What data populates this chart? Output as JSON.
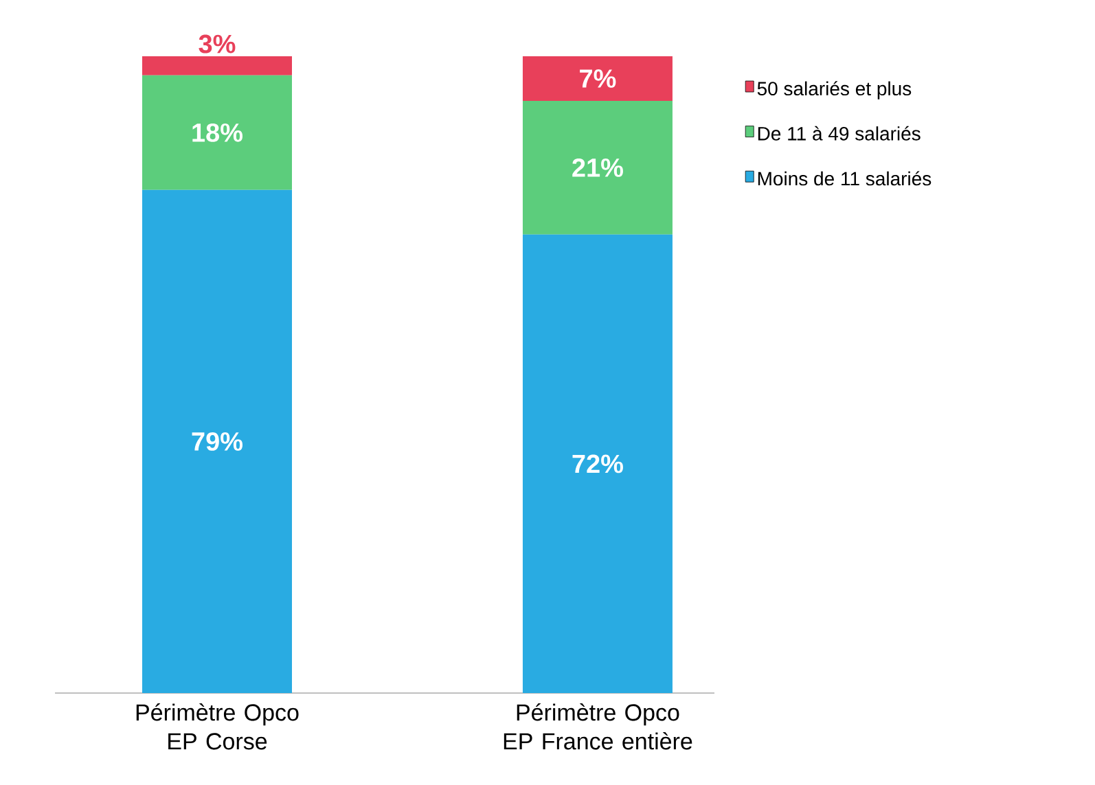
{
  "chart_data": {
    "type": "bar",
    "stacked": true,
    "categories": [
      "Périmètre Opco EP Corse",
      "Périmètre Opco EP France entière"
    ],
    "series": [
      {
        "name": "Moins de 11 salariés",
        "color": "#29abe2",
        "values": [
          79,
          72
        ],
        "value_labels": [
          "79%",
          "72%"
        ]
      },
      {
        "name": "De 11 à 49 salariés",
        "color": "#5ccd7c",
        "values": [
          18,
          21
        ],
        "value_labels": [
          "18%",
          "21%"
        ]
      },
      {
        "name": "50 salariés et plus",
        "color": "#e8405a",
        "values": [
          3,
          7
        ],
        "value_labels": [
          "3%",
          "7%"
        ]
      }
    ],
    "ylim": [
      0,
      100
    ],
    "tick_labels": "x",
    "legend": "right"
  }
}
